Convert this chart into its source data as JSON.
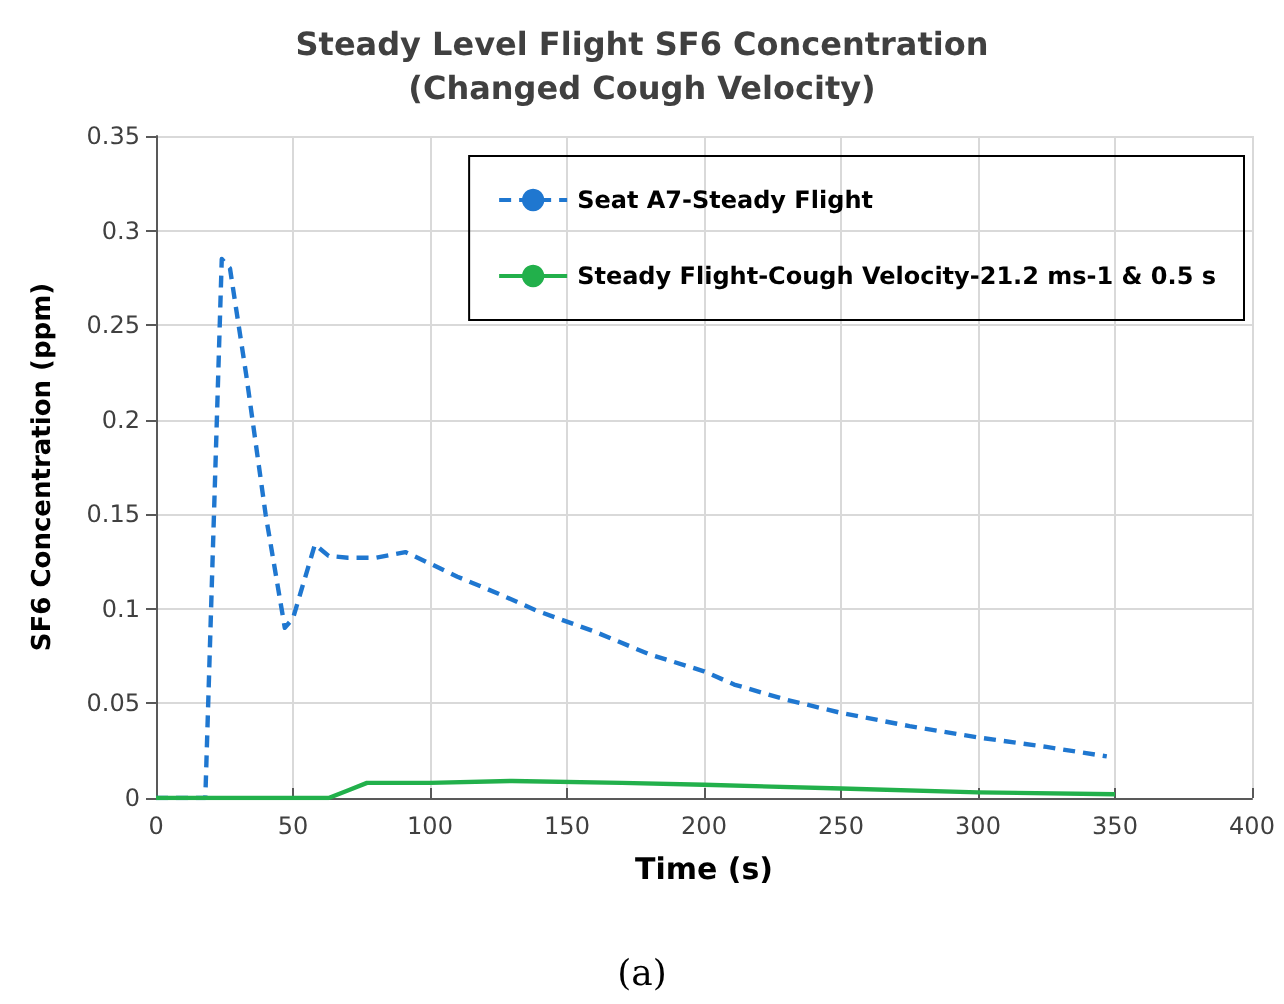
{
  "chart_data": {
    "type": "line",
    "title": "Steady Level Flight SF6 Concentration\n(Changed Cough Velocity)",
    "xlabel": "Time (s)",
    "ylabel": "SF6 Concentration (ppm)",
    "annotations": [
      "(a)"
    ],
    "series": [
      {
        "name": "Seat A7-Steady Flight",
        "color": "#1f77d0",
        "line_style": "dashed",
        "x": [
          0,
          18,
          24,
          27,
          33,
          40,
          47,
          50,
          58,
          63,
          70,
          80,
          91,
          97,
          110,
          125,
          139,
          160,
          180,
          200,
          211,
          230,
          250,
          275,
          300,
          325,
          347
        ],
        "values": [
          0,
          0,
          0.285,
          0.28,
          0.223,
          0.15,
          0.09,
          0.095,
          0.134,
          0.128,
          0.127,
          0.127,
          0.13,
          0.126,
          0.117,
          0.108,
          0.099,
          0.088,
          0.076,
          0.067,
          0.06,
          0.052,
          0.045,
          0.038,
          0.032,
          0.027,
          0.022
        ]
      },
      {
        "name": "Steady Flight-Cough Velocity-21.2 ms-1 & 0.5 s",
        "color": "#22b04b",
        "line_style": "solid",
        "x": [
          0,
          63,
          70,
          77,
          100,
          130,
          170,
          200,
          250,
          300,
          350
        ],
        "values": [
          0,
          0,
          0.004,
          0.008,
          0.008,
          0.009,
          0.008,
          0.007,
          0.005,
          0.003,
          0.002
        ]
      }
    ],
    "xlim": [
      0,
      400
    ],
    "xticks": [
      0,
      50,
      100,
      150,
      200,
      250,
      300,
      350,
      400
    ],
    "ylim": [
      0,
      0.35
    ],
    "yticks": [
      0,
      0.05,
      0.1,
      0.15,
      0.2,
      0.25,
      0.3,
      0.35
    ],
    "grid": true,
    "legend": "top right",
    "marker": "none"
  }
}
